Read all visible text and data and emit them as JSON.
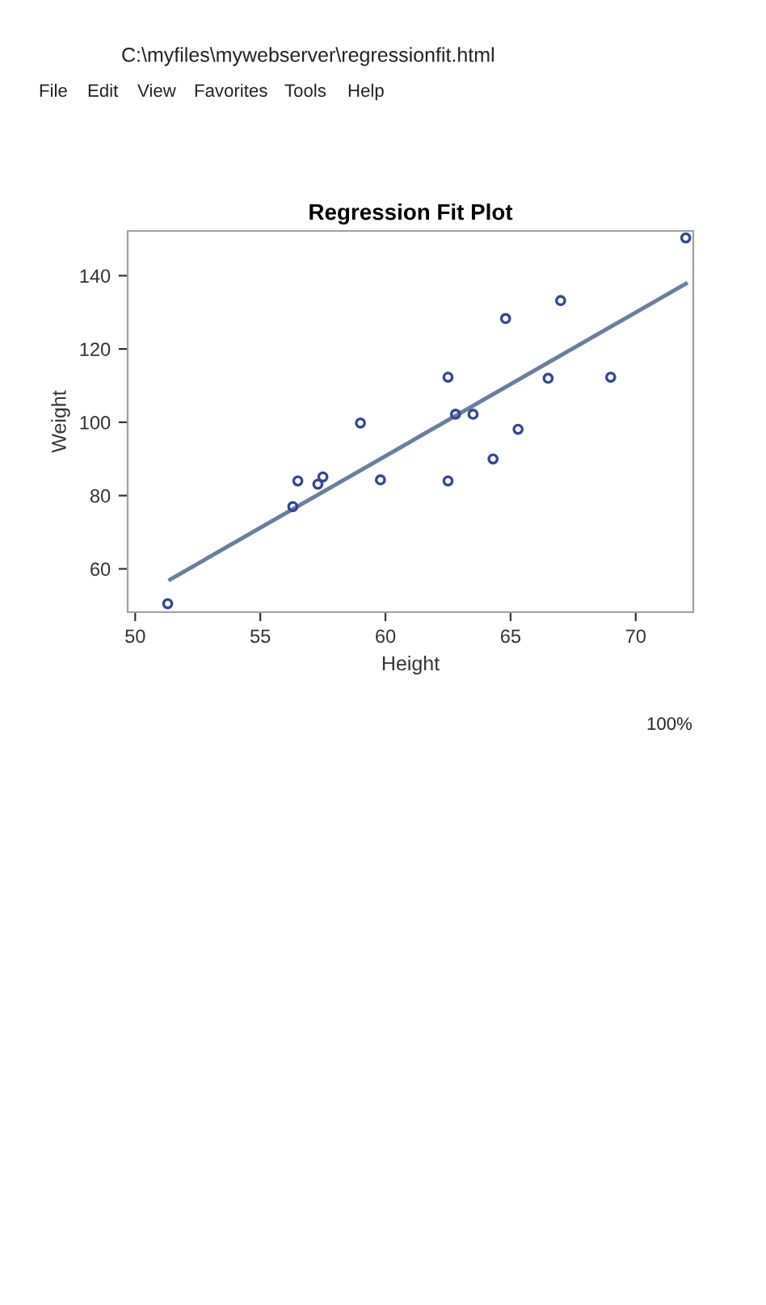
{
  "chart_data": {
    "type": "scatter",
    "title": "Regression Fit Plot",
    "xlabel": "Height",
    "ylabel": "Weight",
    "annotations": [
      "C:\\myfiles\\mywebserver\\regressionfit.html",
      "File",
      "Edit",
      "View",
      "Favorites",
      "Tools",
      "Help",
      "100%"
    ],
    "series": [
      {
        "color": "#34479a",
        "marker": "circle",
        "x": [
          51.3,
          56.3,
          56.5,
          57.3,
          57.5,
          59.0,
          59.8,
          62.5,
          62.5,
          62.8,
          63.5,
          64.3,
          64.8,
          65.3,
          66.5,
          67.0,
          69.0,
          72.0
        ],
        "values": [
          50.5,
          77.0,
          84.0,
          83.1,
          85.1,
          99.8,
          84.3,
          112.3,
          84.0,
          102.2,
          102.2,
          90.0,
          128.3,
          98.1,
          112.0,
          133.2,
          112.3,
          150.3
        ]
      },
      {
        "type": "line",
        "color": "#6a7fa0",
        "marker": "none",
        "line_style": "solid",
        "x": [
          51.4,
          72.0
        ],
        "values": [
          57.1,
          137.8
        ]
      }
    ],
    "xlim": [
      49.7,
      72.3
    ],
    "ylim": [
      48.2,
      152.2
    ],
    "xticks": [
      50,
      55,
      60,
      65,
      70
    ],
    "yticks": [
      60,
      80,
      100,
      120,
      140
    ],
    "grid": false,
    "legend": false
  }
}
